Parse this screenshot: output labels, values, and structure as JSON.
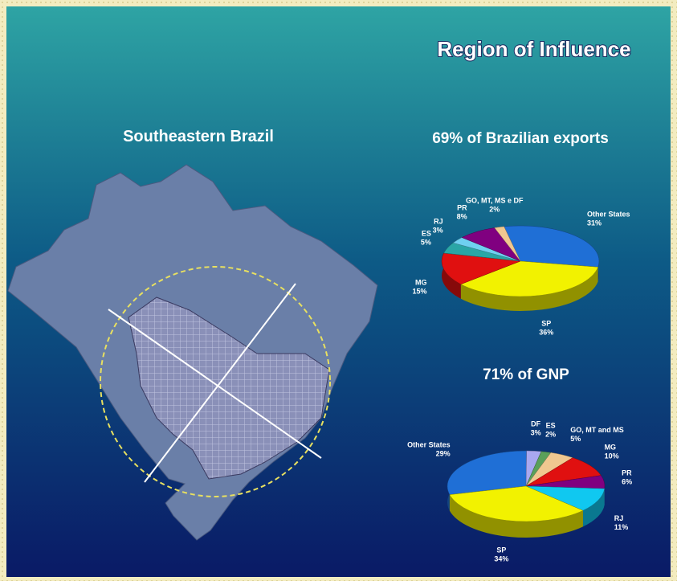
{
  "title": "Region of Influence",
  "map_title": "Southeastern Brazil",
  "chart_data": [
    {
      "type": "pie",
      "title": "69%   of Brazilian exports",
      "categories": [
        "Other States",
        "SP",
        "MG",
        "ES",
        "RJ",
        "PR",
        "GO, MT, MS e DF"
      ],
      "values": [
        31,
        36,
        15,
        5,
        3,
        8,
        2
      ],
      "value_labels": [
        "31%",
        "36%",
        "15%",
        "5%",
        "3%",
        "8%",
        "2%"
      ],
      "colors": [
        "#1f6fd6",
        "#f2f200",
        "#e01010",
        "#2aa6a6",
        "#6fd0f0",
        "#800080",
        "#f0c890"
      ]
    },
    {
      "type": "pie",
      "title": "71%   of GNP",
      "categories": [
        "Other States",
        "DF",
        "ES",
        "GO, MT and MS",
        "MG",
        "PR",
        "RJ",
        "SP"
      ],
      "values": [
        29,
        3,
        2,
        5,
        10,
        6,
        11,
        34
      ],
      "value_labels": [
        "29%",
        "3%",
        "2%",
        "5%",
        "10%",
        "6%",
        "11%",
        "34%"
      ],
      "colors": [
        "#1f6fd6",
        "#a8a8f0",
        "#5aa05a",
        "#f0c890",
        "#e01010",
        "#800080",
        "#10c8f0",
        "#f2f200"
      ]
    }
  ]
}
